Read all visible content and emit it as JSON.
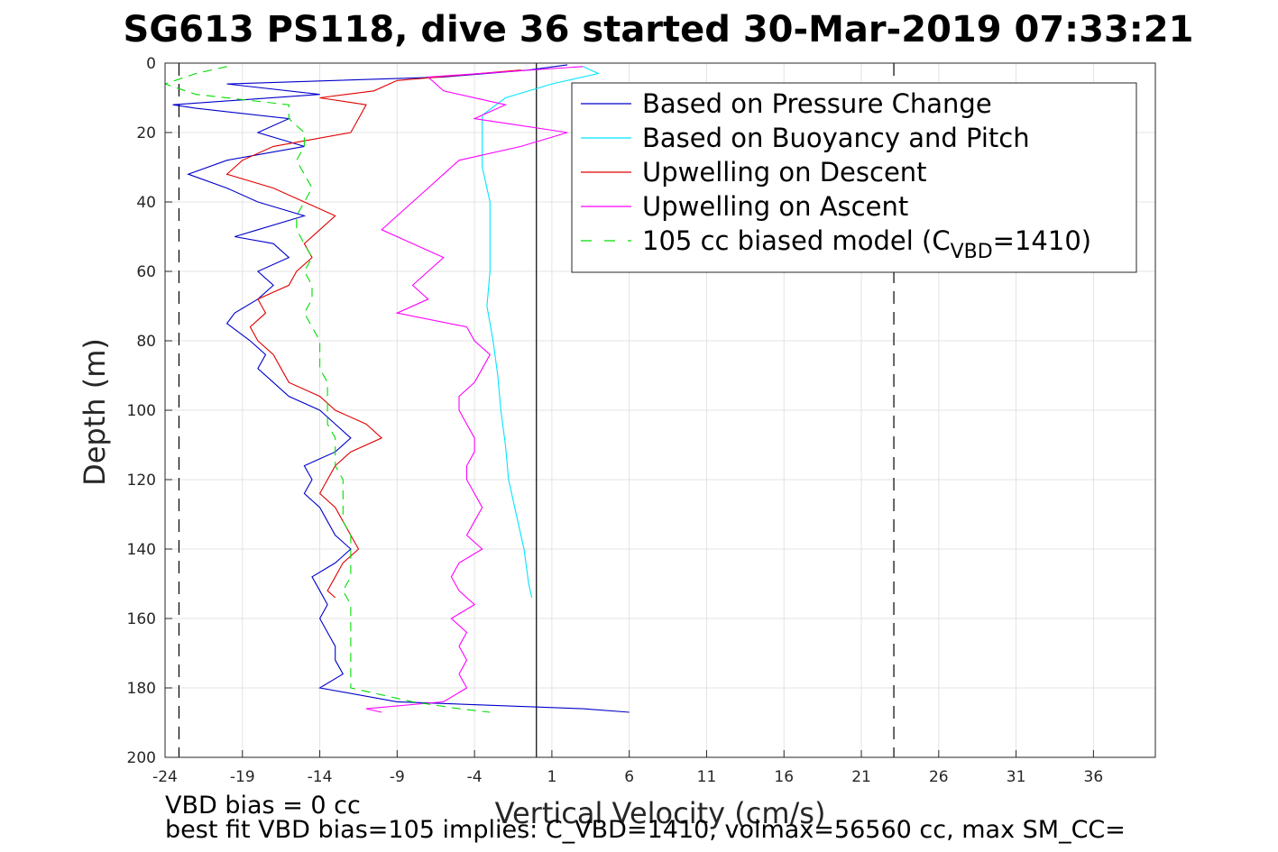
{
  "chart_data": {
    "type": "line",
    "title": "SG613 PS118, dive 36 started 30-Mar-2019 07:33:21",
    "xlabel": "Vertical Velocity (cm/s)",
    "ylabel": "Depth (m)",
    "xlim": [
      -24,
      40
    ],
    "ylim": [
      0,
      200
    ],
    "y_reversed": true,
    "grid": true,
    "legend_position": "top-right",
    "xticks": [
      "-24",
      "-19",
      "-14",
      "-9",
      "-4",
      "1",
      "6",
      "11",
      "16",
      "21",
      "26",
      "31",
      "36"
    ],
    "xtick_values": [
      -24,
      -19,
      -14,
      -9,
      -4,
      1,
      6,
      11,
      16,
      21,
      26,
      31,
      36
    ],
    "yticks": [
      "0",
      "20",
      "40",
      "60",
      "80",
      "100",
      "120",
      "140",
      "160",
      "180",
      "200"
    ],
    "ytick_values": [
      0,
      20,
      40,
      60,
      80,
      100,
      120,
      140,
      160,
      180,
      200
    ],
    "reference_lines": [
      {
        "orientation": "vertical",
        "x": 0,
        "style": "solid",
        "color": "#000000"
      },
      {
        "orientation": "vertical",
        "x": -23.1,
        "style": "dashed",
        "color": "#000000"
      },
      {
        "orientation": "vertical",
        "x": 23.1,
        "style": "dashed",
        "color": "#000000"
      }
    ],
    "series": [
      {
        "name": "Based on Pressure Change",
        "color": "#0000cc",
        "dash": "solid",
        "depth": [
          0.5,
          2,
          4,
          6,
          9,
          12,
          13,
          16,
          20,
          24,
          28,
          32,
          36,
          40,
          44,
          48,
          50,
          52,
          56,
          60,
          64,
          68,
          72,
          75,
          80,
          84,
          88,
          92,
          96,
          100,
          104,
          108,
          112,
          116,
          120,
          124,
          128,
          132,
          136,
          140,
          144,
          148,
          152,
          156,
          160,
          164,
          168,
          172,
          176,
          180,
          184,
          186,
          187
        ],
        "x": [
          2,
          -0.5,
          -6,
          -20,
          -14,
          -23.5,
          -22,
          -16,
          -18,
          -15,
          -20,
          -22.5,
          -20,
          -18,
          -15,
          -18,
          -19.5,
          -17,
          -16,
          -18,
          -17,
          -18,
          -19.5,
          -20,
          -18.5,
          -17.5,
          -18,
          -17,
          -16,
          -14,
          -13,
          -12,
          -13,
          -15,
          -14.5,
          -15,
          -14,
          -13.5,
          -13,
          -12,
          -13,
          -14.5,
          -14,
          -13.5,
          -14,
          -13.5,
          -13,
          -13,
          -12.5,
          -14,
          -9,
          3,
          6
        ]
      },
      {
        "name": "Based on Buoyancy and Pitch",
        "color": "#00e5ff",
        "dash": "solid",
        "depth": [
          1,
          3,
          6,
          10,
          15,
          20,
          30,
          40,
          50,
          60,
          70,
          80,
          90,
          100,
          110,
          120,
          130,
          140,
          150,
          154
        ],
        "x": [
          3,
          4,
          1,
          -2,
          -3.5,
          -3.5,
          -3.5,
          -3,
          -3,
          -3,
          -3.2,
          -2.8,
          -2.5,
          -2.3,
          -2,
          -1.8,
          -1.3,
          -0.8,
          -0.5,
          -0.3
        ]
      },
      {
        "name": "Upwelling on Descent",
        "color": "#e00000",
        "dash": "solid",
        "depth": [
          2,
          5,
          8,
          10,
          12,
          16,
          20,
          24,
          28,
          32,
          36,
          40,
          44,
          48,
          52,
          56,
          60,
          64,
          68,
          72,
          76,
          80,
          84,
          88,
          92,
          96,
          100,
          104,
          108,
          112,
          116,
          120,
          124,
          128,
          132,
          136,
          140,
          144,
          148,
          152,
          154
        ],
        "x": [
          -1,
          -9,
          -10.5,
          -14,
          -11,
          -11.5,
          -12,
          -17,
          -19,
          -20,
          -17,
          -15,
          -13,
          -14,
          -15,
          -14.5,
          -15.5,
          -16,
          -18,
          -17.5,
          -18.5,
          -18,
          -17,
          -16.5,
          -16,
          -14,
          -13,
          -11,
          -10,
          -12,
          -13,
          -13.5,
          -14,
          -13,
          -12.5,
          -12,
          -11.5,
          -12.5,
          -13,
          -13.5,
          -13
        ]
      },
      {
        "name": "Upwelling on Ascent",
        "color": "#ff00ff",
        "dash": "solid",
        "depth": [
          1,
          4,
          8,
          12,
          16,
          20,
          24,
          28,
          32,
          36,
          40,
          44,
          48,
          52,
          56,
          60,
          64,
          68,
          72,
          76,
          80,
          84,
          88,
          92,
          96,
          100,
          104,
          108,
          112,
          116,
          120,
          124,
          128,
          132,
          136,
          140,
          144,
          148,
          152,
          156,
          160,
          164,
          168,
          172,
          176,
          180,
          184,
          186,
          187
        ],
        "x": [
          3,
          -7,
          -6,
          -2,
          -4,
          2,
          -1,
          -5,
          -6,
          -7,
          -8,
          -9,
          -10,
          -8,
          -6,
          -7,
          -8,
          -7,
          -9,
          -4.5,
          -4,
          -3,
          -3.5,
          -4,
          -5,
          -5,
          -4.5,
          -4,
          -4,
          -4.5,
          -4.5,
          -4,
          -3.5,
          -4,
          -4.5,
          -3.5,
          -5,
          -5.5,
          -5,
          -4,
          -5.5,
          -4.5,
          -5,
          -4.5,
          -5,
          -4.5,
          -6,
          -11,
          -10
        ]
      },
      {
        "name": "105 cc biased model (C",
        "name_subscript": "VBD",
        "name_suffix": "=1410)",
        "color": "#00dd00",
        "dash": "dashed",
        "depth": [
          1,
          3,
          6,
          9,
          12,
          16,
          20,
          24,
          28,
          32,
          36,
          40,
          44,
          48,
          52,
          56,
          60,
          64,
          68,
          72,
          76,
          80,
          84,
          88,
          92,
          96,
          100,
          104,
          108,
          112,
          116,
          120,
          124,
          128,
          132,
          136,
          140,
          144,
          148,
          152,
          156,
          160,
          164,
          168,
          172,
          176,
          180,
          184,
          186,
          187
        ],
        "x": [
          -20,
          -22,
          -24,
          -22,
          -16,
          -16,
          -15,
          -15,
          -15.5,
          -15,
          -14.5,
          -15,
          -15.5,
          -15.5,
          -15,
          -14.5,
          -15,
          -14.5,
          -14.5,
          -15,
          -14.5,
          -14,
          -14,
          -14,
          -13.5,
          -13.5,
          -13.5,
          -13.5,
          -13,
          -13,
          -13,
          -12.5,
          -12.5,
          -12.5,
          -12.5,
          -12,
          -12,
          -12,
          -12,
          -12.5,
          -12,
          -12,
          -12,
          -12,
          -12,
          -12,
          -12,
          -8,
          -5,
          -3
        ]
      }
    ]
  },
  "notes": {
    "line1": "VBD bias = 0 cc",
    "line2": "best fit VBD bias=105 implies: C_VBD=1410, volmax=56560 cc, max SM_CC="
  }
}
